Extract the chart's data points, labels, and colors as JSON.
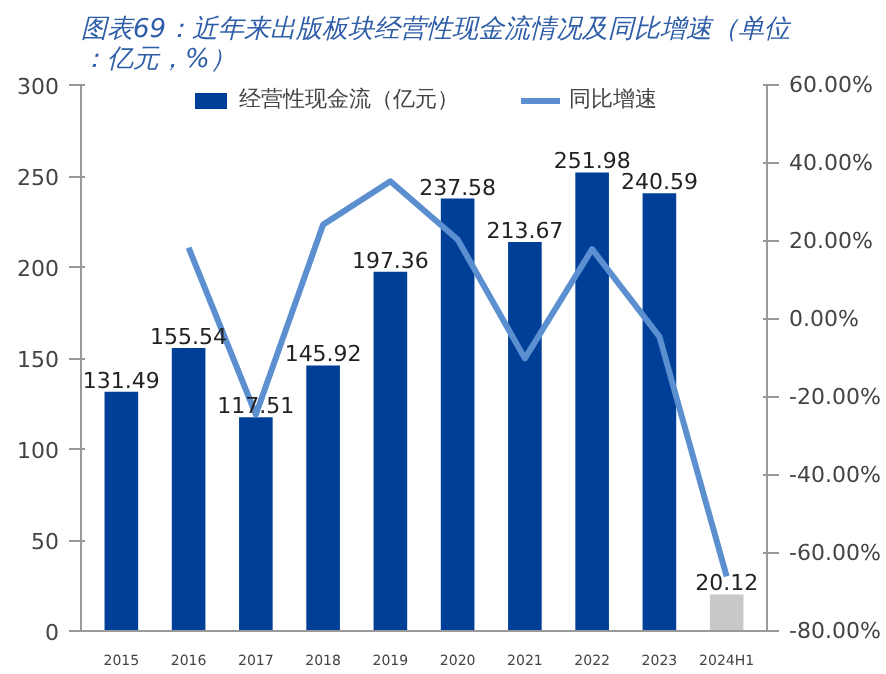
{
  "chart_data": {
    "type": "bar",
    "title": "图表69：近年来出版板块经营性现金流情况及同比增速（单位：亿元，%）",
    "categories": [
      "2015",
      "2016",
      "2017",
      "2018",
      "2019",
      "2020",
      "2021",
      "2022",
      "2023",
      "2024H1"
    ],
    "series": [
      {
        "name": "经营性现金流（亿元）",
        "colors": [
          "#003f98",
          "#003f98",
          "#003f98",
          "#003f98",
          "#003f98",
          "#003f98",
          "#003f98",
          "#003f98",
          "#003f98",
          "#c8c8c8"
        ],
        "values": [
          131.49,
          155.54,
          117.51,
          145.92,
          197.36,
          237.58,
          213.67,
          251.98,
          240.59,
          20.12
        ],
        "value_labels": [
          "131.49",
          "155.54",
          "117.51",
          "145.92",
          "197.36",
          "237.58",
          "213.67",
          "251.98",
          "240.59",
          "20.12"
        ]
      },
      {
        "name": "同比增速",
        "type": "line",
        "axis": "y2",
        "color": "#5b8fd0",
        "values": [
          null,
          18.3,
          -24.5,
          24.2,
          35.3,
          20.4,
          -10.1,
          17.9,
          -4.5,
          -66
        ]
      }
    ],
    "ylim": [
      0,
      300
    ],
    "yticks": [
      0,
      50,
      100,
      150,
      200,
      250,
      300
    ],
    "y2lim": [
      -80,
      60
    ],
    "y2ticks": [
      {
        "value": -80,
        "label": "-80.00%"
      },
      {
        "value": -60,
        "label": "-60.00%"
      },
      {
        "value": -40,
        "label": "-40.00%"
      },
      {
        "value": -20,
        "label": "-20.00%"
      },
      {
        "value": 0,
        "label": "0.00%"
      },
      {
        "value": 20,
        "label": "20.00%"
      },
      {
        "value": 40,
        "label": "40.00%"
      },
      {
        "value": 60,
        "label": "60.00%"
      }
    ],
    "grid": false,
    "legend": "top",
    "line_style": "solid",
    "marker": "none"
  }
}
